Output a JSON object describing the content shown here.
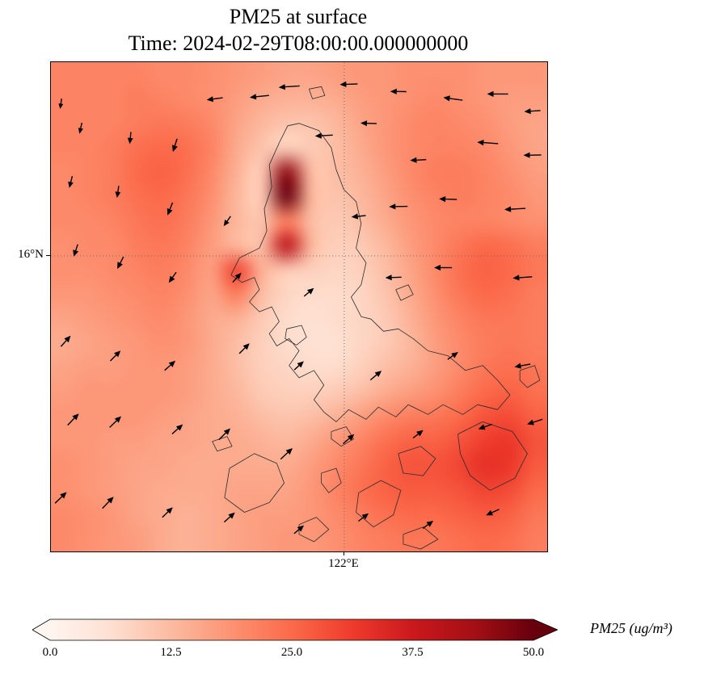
{
  "title": {
    "line1": "PM25 at surface",
    "line2": "Time: 2024-02-29T08:00:00.000000000"
  },
  "axes": {
    "ytick_label": "16°N",
    "xtick_label": "122°E",
    "ytick_frac": 0.396,
    "xtick_frac": 0.591
  },
  "colorbar": {
    "label": "PM25 (ug/m³)",
    "min": 0.0,
    "max": 50.0,
    "ticks": [
      "0.0",
      "12.5",
      "25.0",
      "37.5",
      "50.0"
    ],
    "stops": [
      [
        0.0,
        "#fff5f0"
      ],
      [
        0.125,
        "#fee0d2"
      ],
      [
        0.25,
        "#fcbba1"
      ],
      [
        0.375,
        "#fc9272"
      ],
      [
        0.5,
        "#fb6a4a"
      ],
      [
        0.625,
        "#ef3b2c"
      ],
      [
        0.75,
        "#cb181d"
      ],
      [
        0.875,
        "#a50f15"
      ],
      [
        1.0,
        "#67000d"
      ]
    ]
  },
  "chart_data": {
    "type": "heatmap",
    "title": "PM25 at surface",
    "time": "2024-02-29T08:00:00.000000000",
    "variable": "PM25",
    "units": "ug/m3",
    "colormap": "Reds",
    "vmin": 0.0,
    "vmax": 50.0,
    "gridline_labels": {
      "lat": "16°N",
      "lon": "122°E"
    },
    "grid": {
      "cols": 20,
      "rows": 20,
      "values": [
        [
          21,
          21,
          21,
          21,
          20,
          20,
          19,
          18,
          17,
          16,
          16,
          17,
          18,
          18,
          19,
          19,
          19,
          18,
          18,
          18
        ],
        [
          21,
          21,
          21,
          22,
          21,
          20,
          19,
          17,
          15,
          14,
          14,
          15,
          17,
          18,
          19,
          20,
          19,
          18,
          17,
          17
        ],
        [
          21,
          21,
          21,
          22,
          23,
          22,
          20,
          16,
          13,
          11,
          11,
          13,
          16,
          18,
          20,
          21,
          20,
          19,
          17,
          16
        ],
        [
          21,
          21,
          22,
          24,
          25,
          24,
          21,
          15,
          11,
          9,
          10,
          12,
          15,
          18,
          20,
          21,
          21,
          20,
          18,
          16
        ],
        [
          20,
          21,
          22,
          25,
          26,
          24,
          20,
          14,
          10,
          46,
          12,
          12,
          14,
          17,
          20,
          22,
          22,
          21,
          19,
          17
        ],
        [
          20,
          21,
          22,
          24,
          25,
          23,
          19,
          13,
          10,
          50,
          13,
          11,
          13,
          16,
          19,
          21,
          22,
          21,
          20,
          18
        ],
        [
          20,
          20,
          21,
          23,
          24,
          22,
          18,
          13,
          11,
          22,
          12,
          10,
          12,
          15,
          18,
          20,
          21,
          21,
          20,
          19
        ],
        [
          19,
          20,
          20,
          22,
          23,
          21,
          17,
          13,
          12,
          40,
          13,
          9,
          10,
          13,
          17,
          20,
          23,
          25,
          24,
          22
        ],
        [
          19,
          19,
          20,
          21,
          22,
          20,
          17,
          30,
          14,
          10,
          9,
          8,
          9,
          12,
          16,
          20,
          24,
          26,
          25,
          23
        ],
        [
          18,
          18,
          19,
          20,
          21,
          19,
          16,
          22,
          12,
          8,
          7,
          7,
          8,
          11,
          15,
          19,
          23,
          25,
          24,
          22
        ],
        [
          16,
          17,
          18,
          19,
          20,
          18,
          15,
          14,
          10,
          7,
          6,
          7,
          8,
          10,
          14,
          18,
          21,
          23,
          23,
          22
        ],
        [
          15,
          16,
          17,
          18,
          19,
          18,
          15,
          12,
          9,
          7,
          6,
          6,
          8,
          10,
          13,
          17,
          20,
          22,
          23,
          22
        ],
        [
          16,
          17,
          17,
          18,
          18,
          17,
          15,
          12,
          9,
          8,
          7,
          7,
          9,
          12,
          14,
          17,
          20,
          23,
          24,
          23
        ],
        [
          17,
          18,
          18,
          18,
          18,
          17,
          15,
          13,
          10,
          9,
          9,
          10,
          12,
          15,
          17,
          19,
          22,
          25,
          26,
          24
        ],
        [
          18,
          18,
          18,
          18,
          17,
          16,
          15,
          14,
          12,
          11,
          12,
          14,
          17,
          20,
          22,
          23,
          25,
          28,
          29,
          26
        ],
        [
          18,
          18,
          17,
          17,
          16,
          16,
          15,
          15,
          14,
          13,
          15,
          18,
          21,
          24,
          26,
          26,
          28,
          31,
          32,
          28
        ],
        [
          19,
          18,
          17,
          16,
          16,
          15,
          15,
          15,
          15,
          15,
          17,
          20,
          23,
          26,
          28,
          28,
          30,
          33,
          32,
          27
        ],
        [
          19,
          18,
          17,
          16,
          15,
          15,
          15,
          16,
          16,
          16,
          18,
          21,
          24,
          26,
          27,
          27,
          28,
          30,
          29,
          25
        ],
        [
          20,
          19,
          18,
          16,
          15,
          14,
          15,
          16,
          17,
          17,
          18,
          20,
          22,
          24,
          25,
          25,
          26,
          27,
          26,
          23
        ],
        [
          20,
          19,
          18,
          17,
          15,
          14,
          15,
          16,
          17,
          18,
          18,
          19,
          21,
          22,
          23,
          23,
          24,
          25,
          24,
          22
        ]
      ]
    },
    "wind_arrows": [
      [
        0.33,
        0.075,
        188,
        20
      ],
      [
        0.42,
        0.07,
        186,
        24
      ],
      [
        0.48,
        0.05,
        184,
        26
      ],
      [
        0.6,
        0.045,
        182,
        22
      ],
      [
        0.7,
        0.06,
        179,
        20
      ],
      [
        0.81,
        0.075,
        172,
        24
      ],
      [
        0.9,
        0.065,
        180,
        26
      ],
      [
        0.97,
        0.1,
        184,
        20
      ],
      [
        0.02,
        0.085,
        262,
        13
      ],
      [
        0.06,
        0.135,
        258,
        14
      ],
      [
        0.16,
        0.155,
        264,
        15
      ],
      [
        0.25,
        0.17,
        252,
        17
      ],
      [
        0.55,
        0.15,
        183,
        22
      ],
      [
        0.64,
        0.125,
        178,
        20
      ],
      [
        0.88,
        0.165,
        176,
        26
      ],
      [
        0.97,
        0.19,
        181,
        22
      ],
      [
        0.74,
        0.2,
        183,
        20
      ],
      [
        0.04,
        0.245,
        256,
        15
      ],
      [
        0.135,
        0.265,
        262,
        15
      ],
      [
        0.24,
        0.3,
        248,
        17
      ],
      [
        0.355,
        0.325,
        235,
        15
      ],
      [
        0.62,
        0.315,
        186,
        18
      ],
      [
        0.7,
        0.295,
        181,
        23
      ],
      [
        0.8,
        0.28,
        178,
        22
      ],
      [
        0.935,
        0.3,
        183,
        26
      ],
      [
        0.05,
        0.385,
        252,
        16
      ],
      [
        0.14,
        0.41,
        243,
        17
      ],
      [
        0.245,
        0.44,
        235,
        16
      ],
      [
        0.375,
        0.44,
        48,
        16
      ],
      [
        0.52,
        0.47,
        40,
        16
      ],
      [
        0.69,
        0.44,
        182,
        20
      ],
      [
        0.79,
        0.42,
        180,
        22
      ],
      [
        0.95,
        0.44,
        184,
        24
      ],
      [
        0.03,
        0.57,
        48,
        18
      ],
      [
        0.13,
        0.6,
        45,
        18
      ],
      [
        0.24,
        0.62,
        42,
        18
      ],
      [
        0.39,
        0.585,
        45,
        18
      ],
      [
        0.5,
        0.62,
        42,
        16
      ],
      [
        0.655,
        0.64,
        40,
        18
      ],
      [
        0.81,
        0.6,
        35,
        16
      ],
      [
        0.95,
        0.62,
        190,
        20
      ],
      [
        0.045,
        0.73,
        46,
        20
      ],
      [
        0.13,
        0.735,
        44,
        20
      ],
      [
        0.255,
        0.75,
        42,
        18
      ],
      [
        0.35,
        0.76,
        45,
        20
      ],
      [
        0.475,
        0.8,
        43,
        20
      ],
      [
        0.6,
        0.77,
        40,
        18
      ],
      [
        0.74,
        0.76,
        38,
        16
      ],
      [
        0.875,
        0.745,
        200,
        18
      ],
      [
        0.975,
        0.735,
        198,
        20
      ],
      [
        0.02,
        0.89,
        44,
        20
      ],
      [
        0.115,
        0.9,
        46,
        20
      ],
      [
        0.235,
        0.92,
        44,
        18
      ],
      [
        0.36,
        0.93,
        42,
        18
      ],
      [
        0.5,
        0.955,
        40,
        16
      ],
      [
        0.63,
        0.93,
        38,
        16
      ],
      [
        0.76,
        0.945,
        36,
        16
      ],
      [
        0.89,
        0.92,
        205,
        18
      ]
    ],
    "coastlines": {
      "luzon": [
        [
          0.5,
          0.125
        ],
        [
          0.54,
          0.14
        ],
        [
          0.565,
          0.175
        ],
        [
          0.575,
          0.22
        ],
        [
          0.59,
          0.26
        ],
        [
          0.615,
          0.285
        ],
        [
          0.625,
          0.33
        ],
        [
          0.615,
          0.38
        ],
        [
          0.635,
          0.41
        ],
        [
          0.625,
          0.455
        ],
        [
          0.605,
          0.48
        ],
        [
          0.625,
          0.52
        ],
        [
          0.645,
          0.525
        ],
        [
          0.67,
          0.55
        ],
        [
          0.7,
          0.545
        ],
        [
          0.73,
          0.565
        ],
        [
          0.76,
          0.59
        ],
        [
          0.8,
          0.6
        ],
        [
          0.835,
          0.63
        ],
        [
          0.87,
          0.62
        ],
        [
          0.9,
          0.65
        ],
        [
          0.925,
          0.68
        ],
        [
          0.9,
          0.71
        ],
        [
          0.86,
          0.7
        ],
        [
          0.83,
          0.72
        ],
        [
          0.79,
          0.7
        ],
        [
          0.76,
          0.72
        ],
        [
          0.72,
          0.7
        ],
        [
          0.695,
          0.725
        ],
        [
          0.66,
          0.705
        ],
        [
          0.635,
          0.73
        ],
        [
          0.6,
          0.71
        ],
        [
          0.575,
          0.735
        ],
        [
          0.55,
          0.715
        ],
        [
          0.53,
          0.69
        ],
        [
          0.55,
          0.66
        ],
        [
          0.53,
          0.63
        ],
        [
          0.5,
          0.645
        ],
        [
          0.48,
          0.62
        ],
        [
          0.5,
          0.59
        ],
        [
          0.48,
          0.565
        ],
        [
          0.455,
          0.58
        ],
        [
          0.44,
          0.555
        ],
        [
          0.46,
          0.53
        ],
        [
          0.445,
          0.5
        ],
        [
          0.42,
          0.51
        ],
        [
          0.4,
          0.49
        ],
        [
          0.42,
          0.465
        ],
        [
          0.41,
          0.44
        ],
        [
          0.385,
          0.45
        ],
        [
          0.363,
          0.435
        ],
        [
          0.38,
          0.4
        ],
        [
          0.42,
          0.38
        ],
        [
          0.435,
          0.345
        ],
        [
          0.43,
          0.3
        ],
        [
          0.445,
          0.255
        ],
        [
          0.44,
          0.21
        ],
        [
          0.46,
          0.165
        ],
        [
          0.477,
          0.13
        ],
        [
          0.5,
          0.125
        ]
      ],
      "laguna_lake": [
        [
          0.475,
          0.545
        ],
        [
          0.505,
          0.538
        ],
        [
          0.515,
          0.562
        ],
        [
          0.495,
          0.578
        ],
        [
          0.472,
          0.565
        ],
        [
          0.475,
          0.545
        ]
      ],
      "polillo": [
        [
          0.695,
          0.465
        ],
        [
          0.72,
          0.455
        ],
        [
          0.73,
          0.475
        ],
        [
          0.705,
          0.487
        ],
        [
          0.695,
          0.465
        ]
      ],
      "lubang": [
        [
          0.325,
          0.775
        ],
        [
          0.355,
          0.765
        ],
        [
          0.365,
          0.785
        ],
        [
          0.335,
          0.795
        ],
        [
          0.325,
          0.775
        ]
      ],
      "mindoro": [
        [
          0.36,
          0.83
        ],
        [
          0.41,
          0.8
        ],
        [
          0.455,
          0.82
        ],
        [
          0.47,
          0.86
        ],
        [
          0.44,
          0.9
        ],
        [
          0.39,
          0.92
        ],
        [
          0.35,
          0.89
        ],
        [
          0.36,
          0.83
        ]
      ],
      "marinduque": [
        [
          0.565,
          0.755
        ],
        [
          0.595,
          0.745
        ],
        [
          0.61,
          0.77
        ],
        [
          0.585,
          0.785
        ],
        [
          0.565,
          0.77
        ],
        [
          0.565,
          0.755
        ]
      ],
      "tablas": [
        [
          0.545,
          0.84
        ],
        [
          0.575,
          0.83
        ],
        [
          0.585,
          0.86
        ],
        [
          0.56,
          0.88
        ],
        [
          0.545,
          0.86
        ],
        [
          0.545,
          0.84
        ]
      ],
      "masbate": [
        [
          0.7,
          0.8
        ],
        [
          0.745,
          0.785
        ],
        [
          0.775,
          0.81
        ],
        [
          0.75,
          0.845
        ],
        [
          0.71,
          0.84
        ],
        [
          0.7,
          0.8
        ]
      ],
      "panay": [
        [
          0.62,
          0.88
        ],
        [
          0.665,
          0.855
        ],
        [
          0.705,
          0.875
        ],
        [
          0.69,
          0.925
        ],
        [
          0.65,
          0.95
        ],
        [
          0.615,
          0.92
        ],
        [
          0.62,
          0.88
        ]
      ],
      "samar": [
        [
          0.82,
          0.76
        ],
        [
          0.87,
          0.735
        ],
        [
          0.93,
          0.755
        ],
        [
          0.96,
          0.8
        ],
        [
          0.935,
          0.85
        ],
        [
          0.885,
          0.875
        ],
        [
          0.845,
          0.845
        ],
        [
          0.825,
          0.8
        ],
        [
          0.82,
          0.76
        ]
      ],
      "catanduanes": [
        [
          0.945,
          0.63
        ],
        [
          0.975,
          0.62
        ],
        [
          0.985,
          0.65
        ],
        [
          0.96,
          0.665
        ],
        [
          0.945,
          0.65
        ],
        [
          0.945,
          0.63
        ]
      ],
      "islet_north": [
        [
          0.52,
          0.055
        ],
        [
          0.545,
          0.05
        ],
        [
          0.552,
          0.068
        ],
        [
          0.527,
          0.075
        ],
        [
          0.52,
          0.055
        ]
      ],
      "island_s1": [
        [
          0.5,
          0.945
        ],
        [
          0.535,
          0.93
        ],
        [
          0.56,
          0.955
        ],
        [
          0.53,
          0.98
        ],
        [
          0.5,
          0.965
        ],
        [
          0.5,
          0.945
        ]
      ],
      "island_s2": [
        [
          0.71,
          0.965
        ],
        [
          0.75,
          0.95
        ],
        [
          0.78,
          0.975
        ],
        [
          0.745,
          0.995
        ],
        [
          0.71,
          0.985
        ],
        [
          0.71,
          0.965
        ]
      ]
    }
  }
}
